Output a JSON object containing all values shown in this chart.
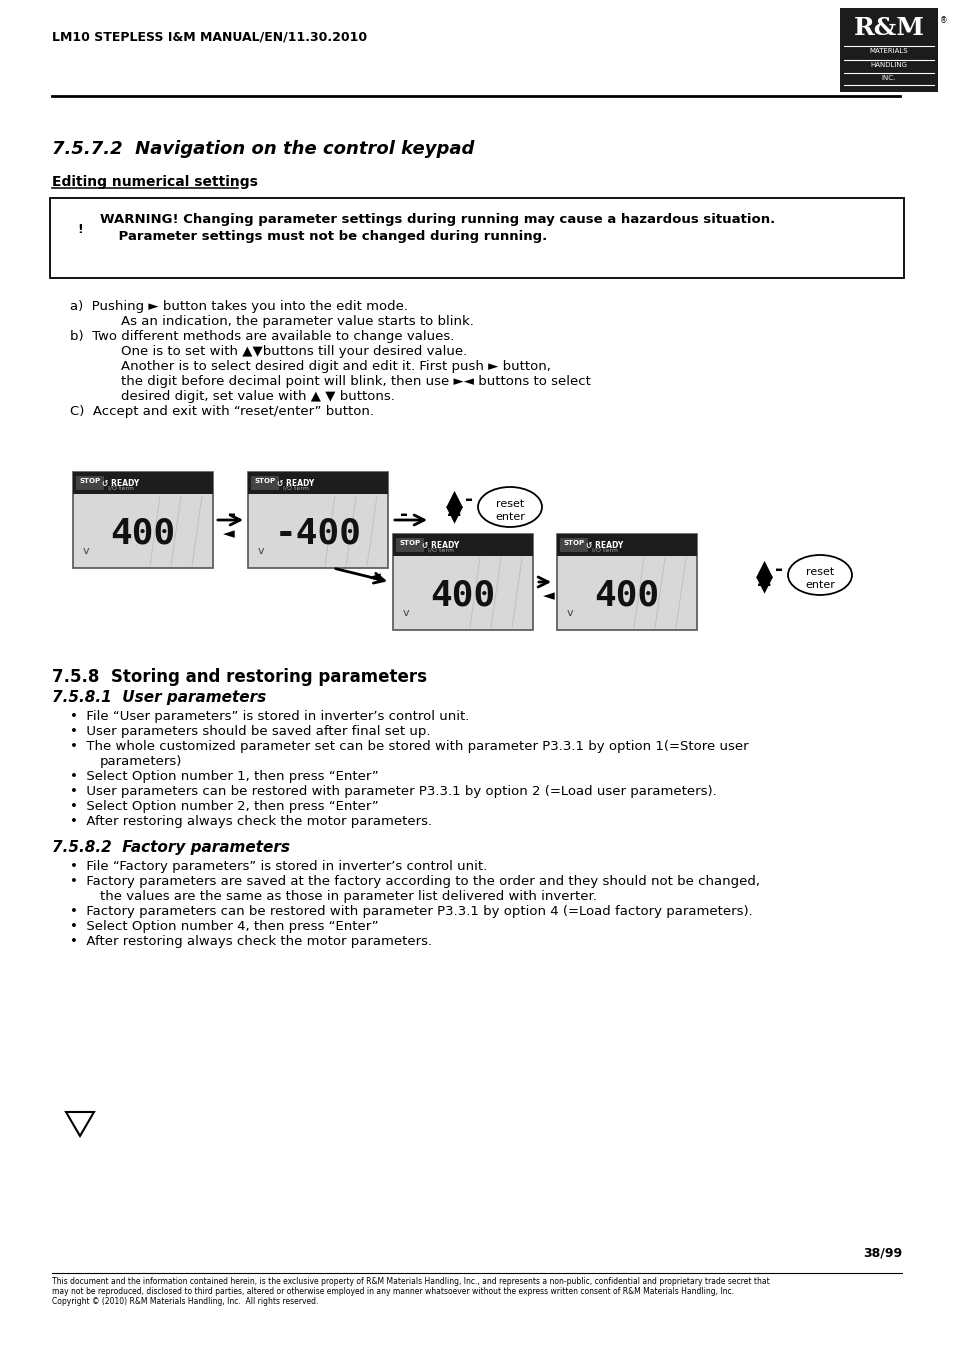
{
  "page_header": "LM10 STEPLESS I&M MANUAL/EN/11.30.2010",
  "page_number": "38/99",
  "section_title": "7.5.7.2  Navigation on the control keypad",
  "subsection_underline": "Editing numerical settings",
  "warn_line1": "WARNING! Changing parameter settings during running may cause a hazardous situation.",
  "warn_line2": "    Parameter settings must not be changed during running.",
  "body_a1": "a)  Pushing ► button takes you into the edit mode.",
  "body_a2": "            As an indication, the parameter value starts to blink.",
  "body_b1": "b)  Two different methods are available to change values.",
  "body_b2": "            One is to set with ▲▼buttons till your desired value.",
  "body_b3": "            Another is to select desired digit and edit it. First push ► button,",
  "body_b4": "            the digit before decimal point will blink, then use ►◄ buttons to select",
  "body_b5": "            desired digit, set value with ▲ ▼ buttons.",
  "body_c": "C)  Accept and exit with “reset/enter” button.",
  "section_58": "7.5.8  Storing and restoring parameters",
  "section_581": "7.5.8.1  User parameters",
  "bullets_581": [
    "File “User parameters” is stored in inverter’s control unit.",
    "User parameters should be saved after final set up.",
    "The whole customized parameter set can be stored with parameter P3.3.1 by option 1(=Store user",
    "parameters)",
    "Select Option number 1, then press “Enter”",
    "User parameters can be restored with parameter P3.3.1 by option 2 (=Load user parameters).",
    "Select Option number 2, then press “Enter”",
    "After restoring always check the motor parameters."
  ],
  "bullets_581_indent": [
    false,
    false,
    false,
    true,
    false,
    false,
    false,
    false
  ],
  "section_582": "7.5.8.2  Factory parameters",
  "bullets_582": [
    "File “Factory parameters” is stored in inverter’s control unit.",
    "Factory parameters are saved at the factory according to the order and they should not be changed,",
    "the values are the same as those in parameter list delivered with inverter.",
    "Factory parameters can be restored with parameter P3.3.1 by option 4 (=Load factory parameters).",
    "Select Option number 4, then press “Enter”",
    "After restoring always check the motor parameters."
  ],
  "bullets_582_indent": [
    false,
    false,
    true,
    false,
    false,
    false
  ],
  "footer_text1": "This document and the information contained herein, is the exclusive property of R&M Materials Handling, Inc., and represents a non-public, confidential and proprietary trade secret that",
  "footer_text2": "may not be reproduced, disclosed to third parties, altered or otherwise employed in any manner whatsoever without the express written consent of R&M Materials Handling, Inc.",
  "footer_text3": "Copyright © (2010) R&M Materials Handling, Inc.  All rights reserved.",
  "bg_color": "#ffffff",
  "text_color": "#000000",
  "logo_bg": "#1c1c1c",
  "panel_bg": "#d8d8d8",
  "panel_header_bg": "#1c1c1c"
}
